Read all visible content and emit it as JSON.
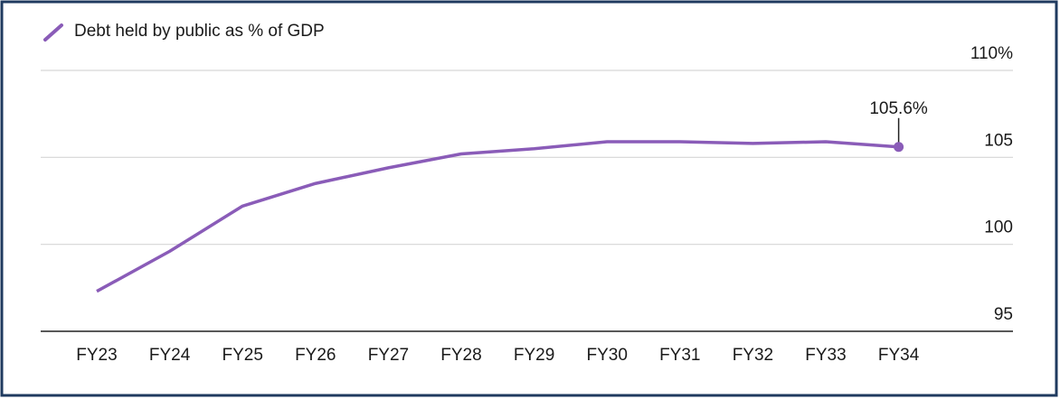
{
  "chart_data": {
    "type": "line",
    "categories": [
      "FY23",
      "FY24",
      "FY25",
      "FY26",
      "FY27",
      "FY28",
      "FY29",
      "FY30",
      "FY31",
      "FY32",
      "FY33",
      "FY34"
    ],
    "series": [
      {
        "name": "Debt held by public as % of GDP",
        "color": "#8a5cb8",
        "values": [
          97.3,
          99.6,
          102.2,
          103.5,
          104.4,
          105.2,
          105.5,
          105.9,
          105.9,
          105.8,
          105.9,
          105.6
        ],
        "value_labels": [
          null,
          null,
          null,
          null,
          null,
          null,
          null,
          null,
          null,
          null,
          null,
          "105.6%"
        ]
      }
    ],
    "ylim": [
      95,
      110
    ],
    "yticks": [
      95,
      100,
      105,
      {
        "value": 110,
        "label": "110%"
      }
    ],
    "grid": true,
    "legend": "top-left"
  }
}
